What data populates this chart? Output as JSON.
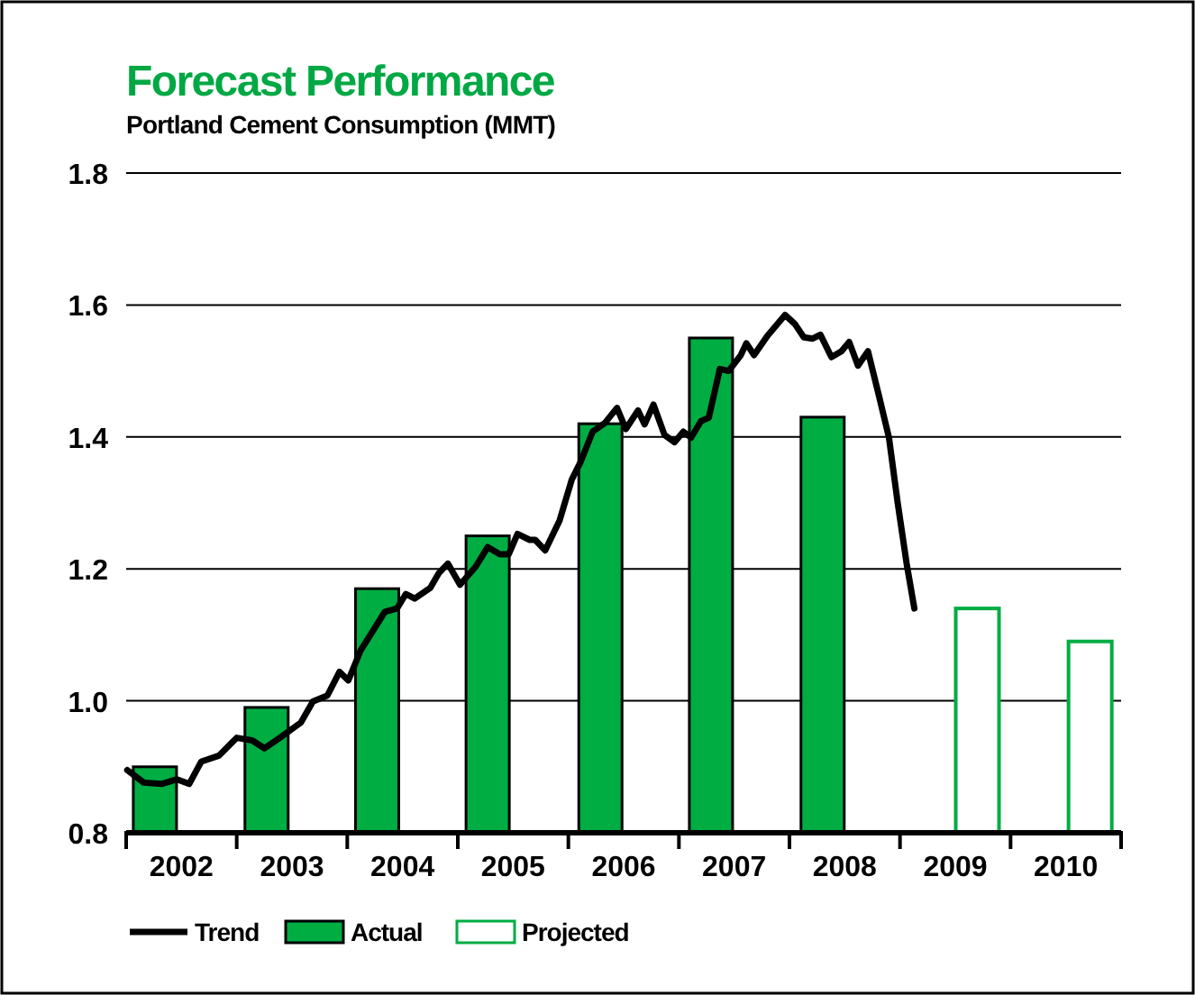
{
  "chart_data": {
    "type": "bar",
    "title": "Forecast Performance",
    "subtitle": "Portland Cement Consumption (MMT)",
    "xlim": [
      2002,
      2011
    ],
    "xticks": [
      {
        "value": 2002,
        "label": null
      },
      {
        "value": 2002.5,
        "label": "2002"
      },
      {
        "value": 2003,
        "label": null
      },
      {
        "value": 2003.5,
        "label": "2003"
      },
      {
        "value": 2004,
        "label": null
      },
      {
        "value": 2004.5,
        "label": "2004"
      },
      {
        "value": 2005,
        "label": null
      },
      {
        "value": 2005.5,
        "label": "2005"
      },
      {
        "value": 2006,
        "label": null
      },
      {
        "value": 2006.5,
        "label": "2006"
      },
      {
        "value": 2007,
        "label": null
      },
      {
        "value": 2007.5,
        "label": "2007"
      },
      {
        "value": 2008,
        "label": null
      },
      {
        "value": 2008.5,
        "label": "2008"
      },
      {
        "value": 2009,
        "label": null
      },
      {
        "value": 2009.5,
        "label": "2009"
      },
      {
        "value": 2010,
        "label": null
      },
      {
        "value": 2010.5,
        "label": "2010"
      },
      {
        "value": 2011,
        "label": null
      }
    ],
    "ylim": [
      0.8,
      1.8
    ],
    "yticks": [
      {
        "value": 0.8,
        "label": "0.8"
      },
      {
        "value": 1.0,
        "label": "1.0"
      },
      {
        "value": 1.2,
        "label": "1.2"
      },
      {
        "value": 1.4,
        "label": "1.4"
      },
      {
        "value": 1.6,
        "label": "1.6"
      },
      {
        "value": 1.8,
        "label": "1.8"
      }
    ],
    "grid": "y",
    "legend": "bottom",
    "series": [
      {
        "name": "Trend",
        "type": "line",
        "color": "#000000",
        "x": [
          2002.01,
          2002.16,
          2002.32,
          2002.46,
          2002.57,
          2002.68,
          2002.84,
          2003.0,
          2003.14,
          2003.25,
          2003.39,
          2003.58,
          2003.69,
          2003.82,
          2003.93,
          2004.01,
          2004.12,
          2004.34,
          2004.45,
          2004.53,
          2004.61,
          2004.75,
          2004.83,
          2004.91,
          2005.02,
          2005.16,
          2005.27,
          2005.38,
          2005.46,
          2005.54,
          2005.65,
          2005.7,
          2005.79,
          2005.92,
          2006.03,
          2006.11,
          2006.22,
          2006.33,
          2006.44,
          2006.52,
          2006.63,
          2006.69,
          2006.77,
          2006.87,
          2006.96,
          2007.04,
          2007.11,
          2007.2,
          2007.27,
          2007.37,
          2007.45,
          2007.56,
          2007.61,
          2007.68,
          2007.8,
          2007.96,
          2008.05,
          2008.13,
          2008.21,
          2008.28,
          2008.38,
          2008.47,
          2008.54,
          2008.62,
          2008.71,
          2008.81,
          2008.9,
          2008.98,
          2009.06,
          2009.13
        ],
        "values": [
          0.895,
          0.876,
          0.874,
          0.881,
          0.874,
          0.908,
          0.917,
          0.944,
          0.94,
          0.928,
          0.944,
          0.967,
          0.999,
          1.008,
          1.044,
          1.031,
          1.076,
          1.135,
          1.14,
          1.162,
          1.155,
          1.171,
          1.194,
          1.208,
          1.176,
          1.203,
          1.233,
          1.222,
          1.222,
          1.253,
          1.244,
          1.244,
          1.228,
          1.273,
          1.335,
          1.362,
          1.408,
          1.421,
          1.444,
          1.412,
          1.44,
          1.419,
          1.449,
          1.403,
          1.392,
          1.408,
          1.399,
          1.424,
          1.429,
          1.503,
          1.5,
          1.524,
          1.542,
          1.524,
          1.553,
          1.585,
          1.571,
          1.551,
          1.549,
          1.555,
          1.521,
          1.53,
          1.544,
          1.508,
          1.53,
          1.462,
          1.399,
          1.299,
          1.208,
          1.14
        ]
      },
      {
        "name": "Actual",
        "type": "bar",
        "color": "#00ad43",
        "x": [
          2002.26,
          2003.27,
          2004.27,
          2005.27,
          2006.29,
          2007.29,
          2008.3
        ],
        "values": [
          0.9,
          0.99,
          1.17,
          1.25,
          1.42,
          1.55,
          1.43
        ]
      },
      {
        "name": "Projected",
        "type": "bar",
        "color": "#ffffff",
        "x": [
          2009.7,
          2010.72
        ],
        "values": [
          1.14,
          1.09
        ]
      }
    ]
  }
}
